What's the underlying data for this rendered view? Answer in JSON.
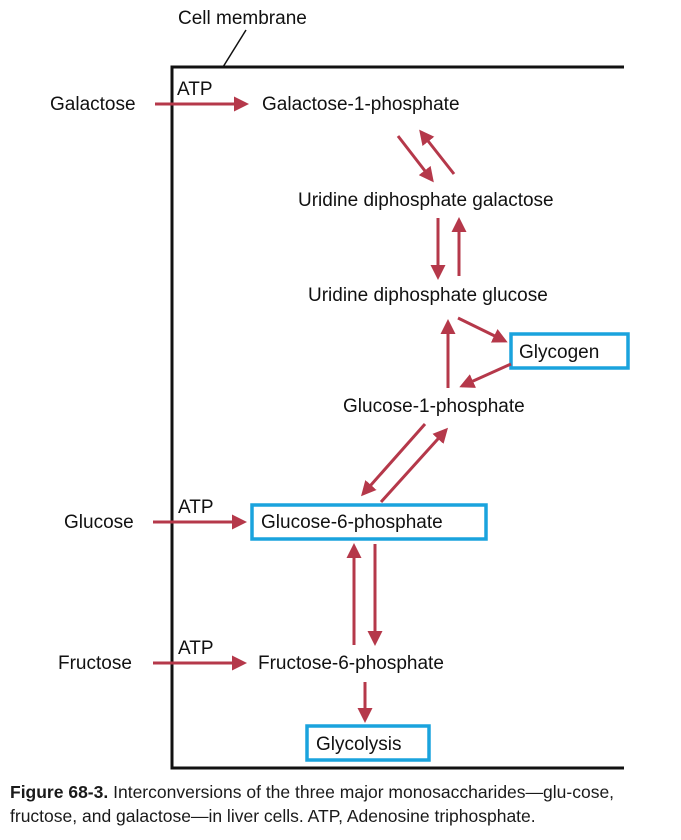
{
  "labels": {
    "cell_membrane": "Cell membrane",
    "galactose": "Galactose",
    "glucose": "Glucose",
    "fructose": "Fructose",
    "atp": "ATP",
    "galactose_1_phosphate": "Galactose-1-phosphate",
    "udp_galactose": "Uridine diphosphate galactose",
    "udp_glucose": "Uridine diphosphate glucose",
    "glycogen": "Glycogen",
    "glucose_1_phosphate": "Glucose-1-phosphate",
    "glucose_6_phosphate": "Glucose-6-phosphate",
    "fructose_6_phosphate": "Fructose-6-phosphate",
    "glycolysis": "Glycolysis"
  },
  "caption": {
    "figure_number": "Figure 68-3.",
    "text": "Interconversions of the three major monosaccharides—glu-cose, fructose, and galactose—in liver cells. ATP, Adenosine triphosphate."
  },
  "colors": {
    "arrow": "#b5384a",
    "highlight_box": "#1aa3dd",
    "membrane": "#111111"
  }
}
